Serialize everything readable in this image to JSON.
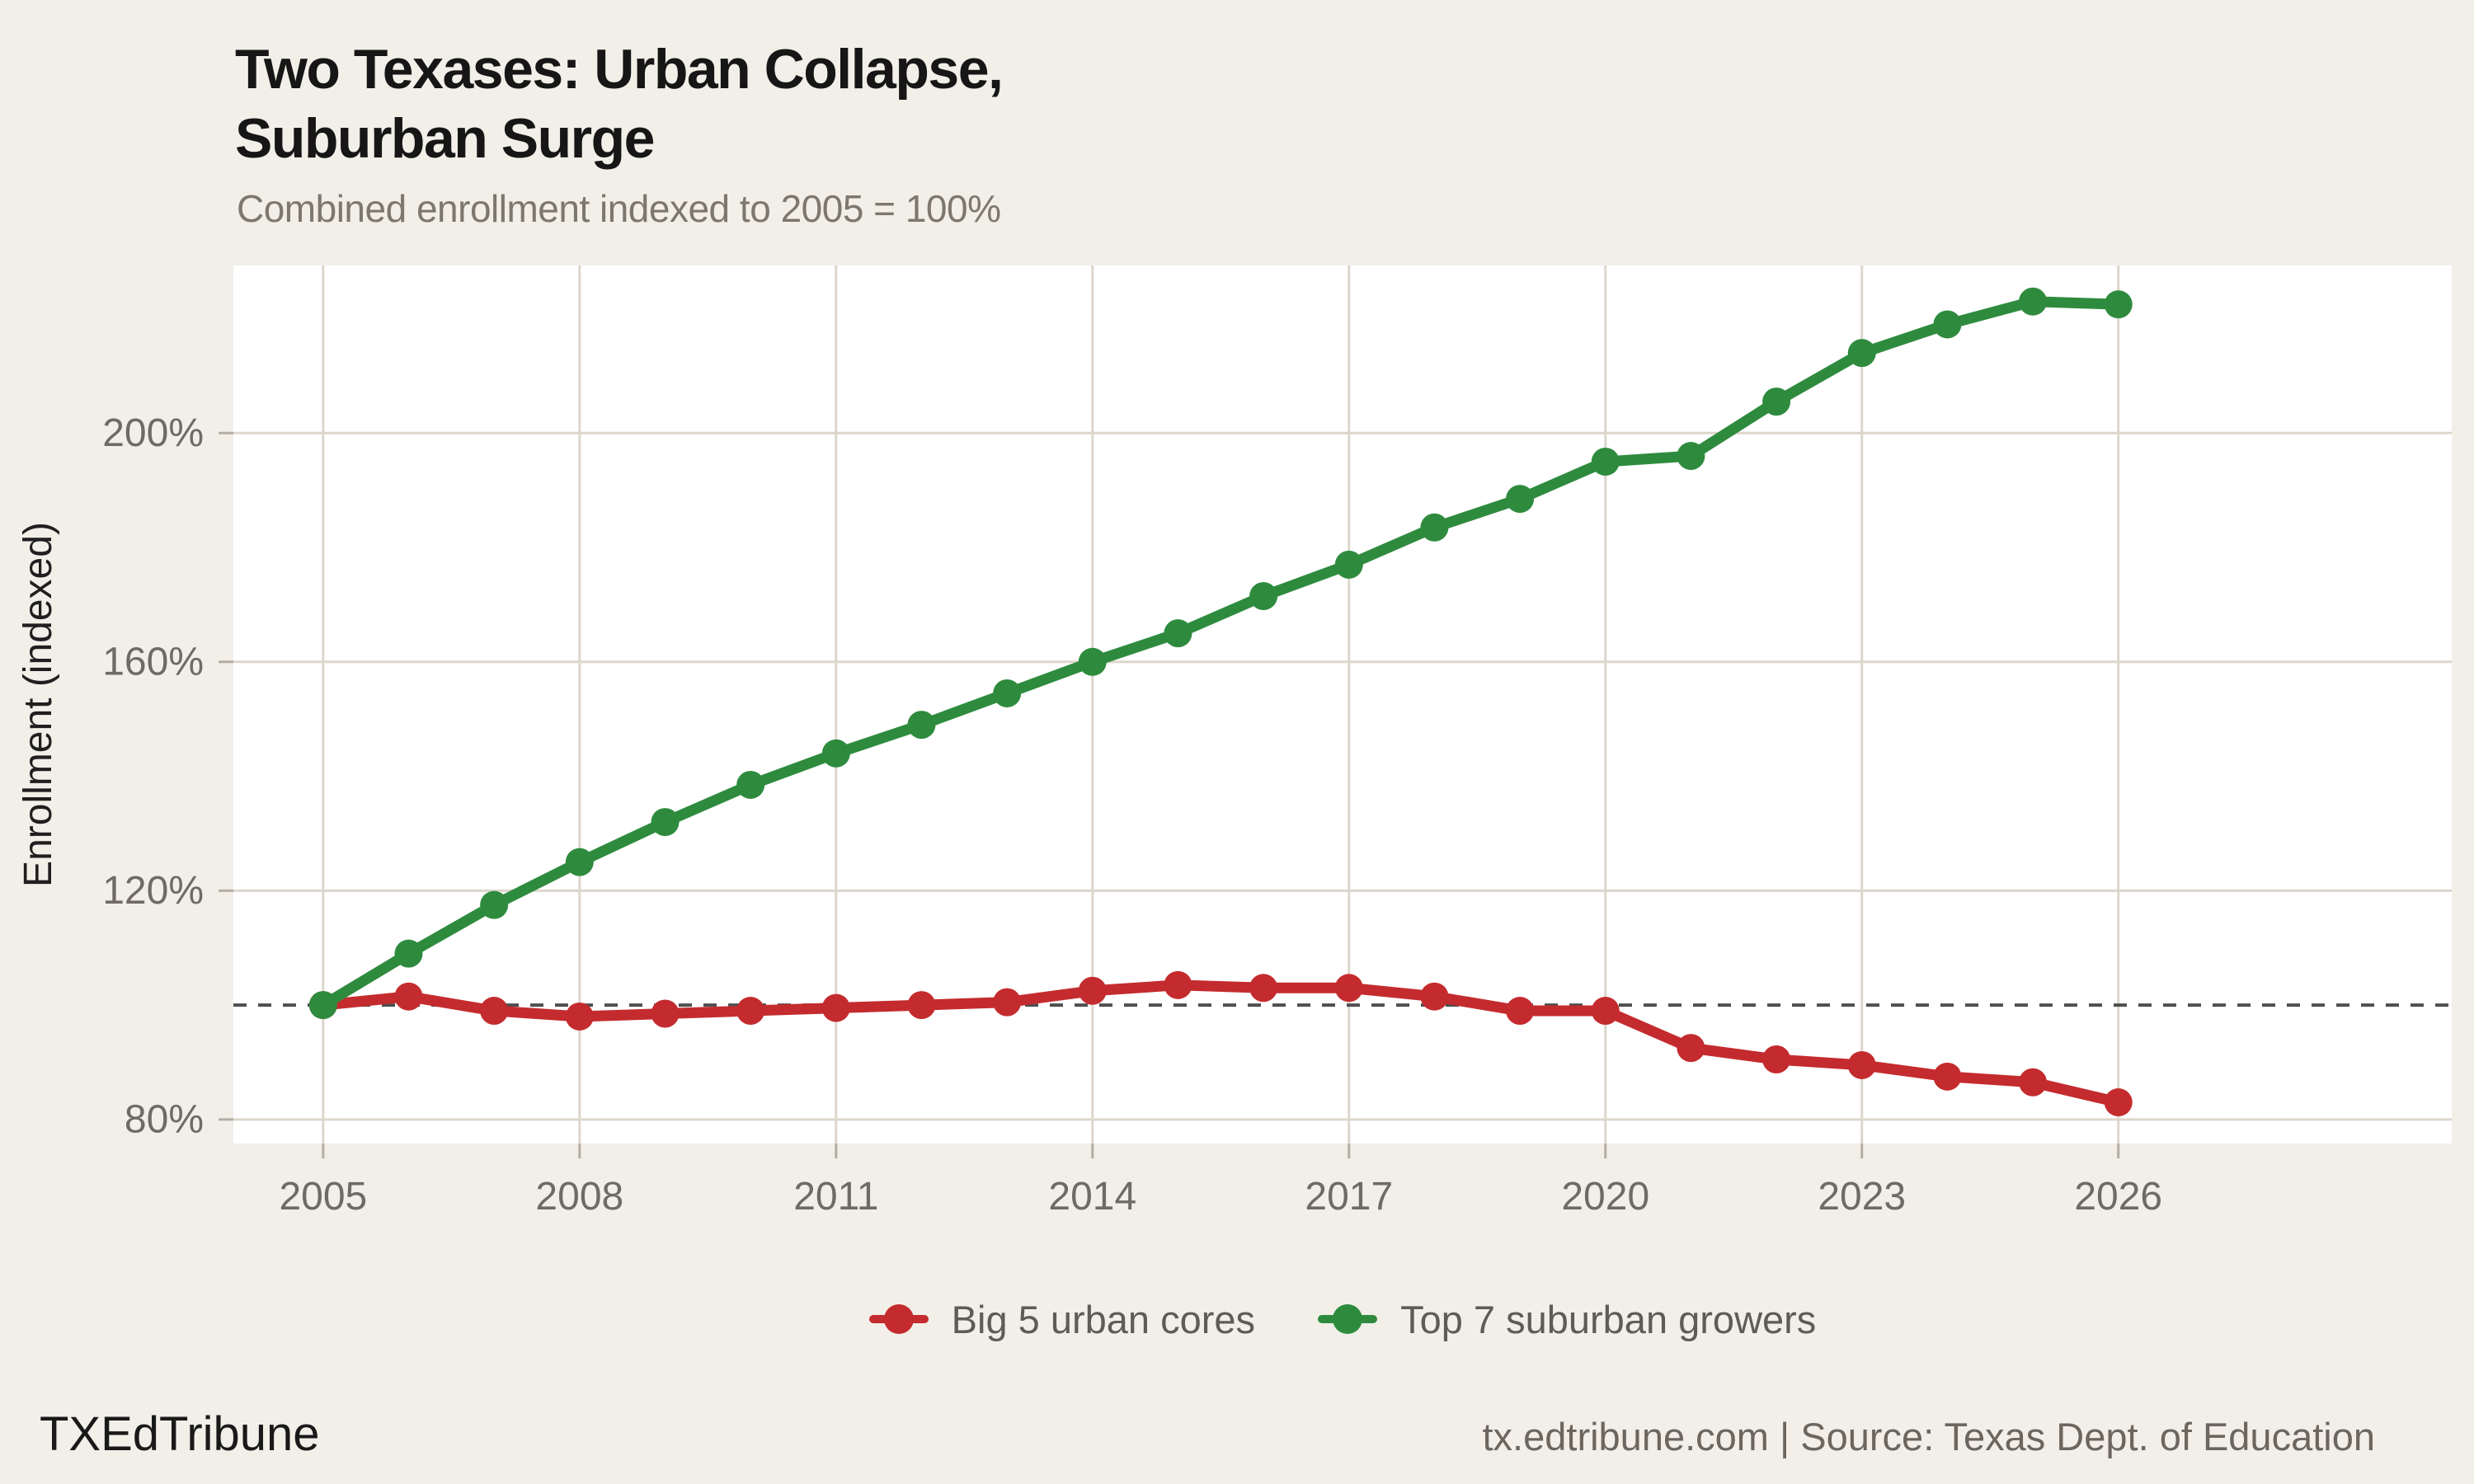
{
  "header": {
    "title_line1": "Two Texases: Urban Collapse,",
    "title_line2": "Suburban Surge",
    "subtitle": "Combined enrollment indexed to 2005 = 100%"
  },
  "legend": {
    "items": [
      {
        "label": "Big 5 urban cores",
        "color": "#c42b2e"
      },
      {
        "label": "Top 7 suburban growers",
        "color": "#2e8b3e"
      }
    ]
  },
  "footer": {
    "brand": "TXEdTribune",
    "source": "tx.edtribune.com | Source: Texas Dept. of Education"
  },
  "colors": {
    "background": "#f2efe8",
    "panel": "#ffffff",
    "grid": "#dcd6cc",
    "tick": "#b3ada3",
    "tick_text": "#6f6b64",
    "axis_title": "#1f1f1f",
    "reference": "#4f4f4f",
    "urban_red": "#c42b2e",
    "suburban_green": "#2e8b3e"
  },
  "chart_data": {
    "type": "line",
    "title": "Two Texases: Urban Collapse, Suburban Surge",
    "subtitle": "Combined enrollment indexed to 2005 = 100%",
    "xlabel": "",
    "ylabel": "Enrollment (indexed)",
    "x": [
      2005,
      2006,
      2007,
      2008,
      2009,
      2010,
      2011,
      2012,
      2013,
      2014,
      2015,
      2016,
      2017,
      2018,
      2019,
      2020,
      2021,
      2022,
      2023,
      2024,
      2025,
      2026
    ],
    "series": [
      {
        "name": "Big 5 urban cores",
        "color": "#c42b2e",
        "values": [
          100,
          101.5,
          99,
          98,
          98.5,
          99,
          99.5,
          100,
          100.5,
          102.5,
          103.5,
          103,
          103,
          101.5,
          99,
          99,
          92.5,
          90.5,
          89.5,
          87.5,
          86.5,
          83
        ]
      },
      {
        "name": "Top 7 suburban growers",
        "color": "#2e8b3e",
        "values": [
          100,
          109,
          117.5,
          125,
          132,
          138.5,
          144,
          149,
          154.5,
          160,
          165,
          171.5,
          177,
          183.5,
          188.5,
          195,
          196,
          205.5,
          214,
          219,
          223,
          222.5
        ]
      }
    ],
    "x_ticks": [
      2005,
      2008,
      2011,
      2014,
      2017,
      2020,
      2023,
      2026
    ],
    "y_ticks": [
      80,
      120,
      160,
      200
    ],
    "y_tick_format": "{v}%",
    "reference_line": 100,
    "xlim": [
      2003.95,
      2029.9
    ],
    "ylim": [
      75.8,
      229.3
    ],
    "grid": true,
    "legend_position": "bottom"
  }
}
